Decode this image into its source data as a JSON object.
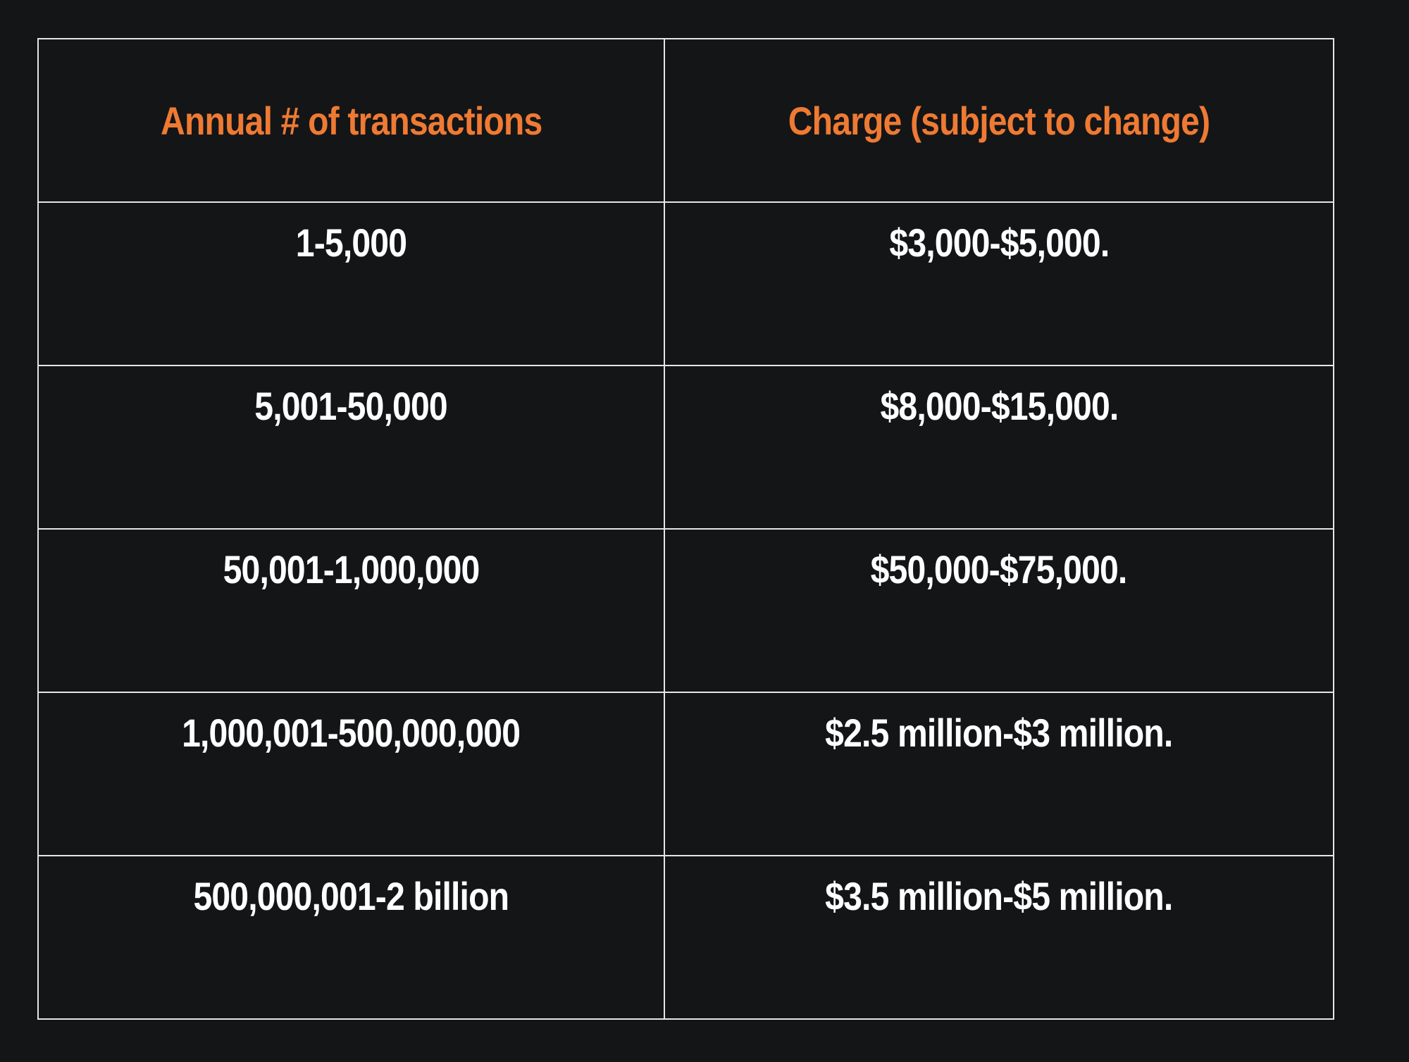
{
  "colors": {
    "background": "#141517",
    "border": "#e6e6e6",
    "header_text": "#ee7a33",
    "body_text": "#ffffff"
  },
  "table": {
    "headers": [
      "Annual # of transactions",
      "Charge (subject to change)"
    ],
    "rows": [
      [
        "1-5,000",
        "$3,000-$5,000."
      ],
      [
        "5,001-50,000",
        "$8,000-$15,000."
      ],
      [
        "50,001-1,000,000",
        "$50,000-$75,000."
      ],
      [
        "1,000,001-500,000,000",
        "$2.5 million-$3 million."
      ],
      [
        "500,000,001-2 billion",
        "$3.5 million-$5 million."
      ]
    ]
  }
}
